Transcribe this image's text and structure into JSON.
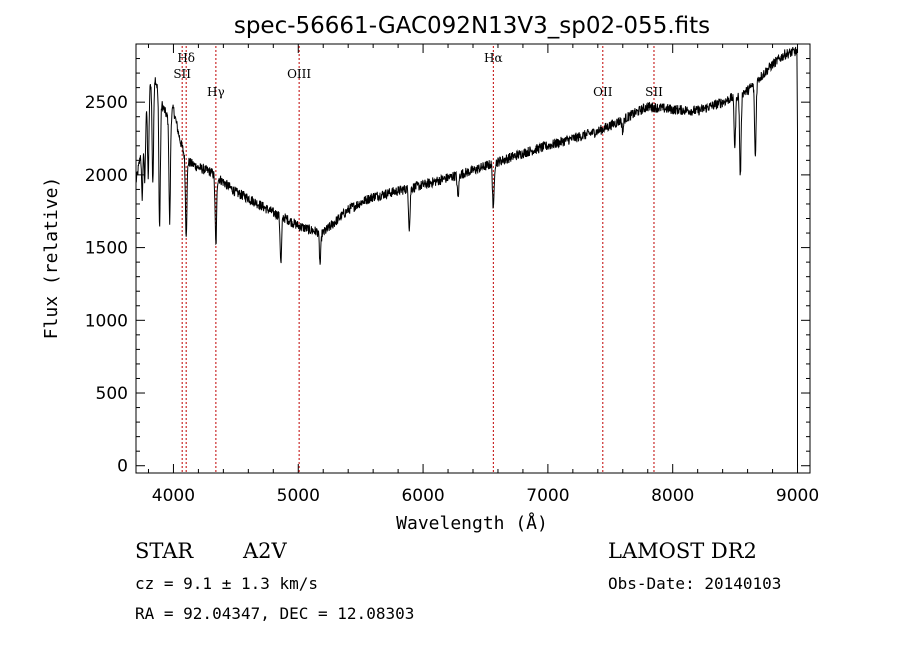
{
  "chart_data": {
    "type": "line",
    "title": "spec-56661-GAC092N13V3_sp02-055.fits",
    "xlabel": "Wavelength (Å)",
    "ylabel": "Flux (relative)",
    "xlim": [
      3700,
      9100
    ],
    "ylim": [
      -50,
      2900
    ],
    "xticks": [
      4000,
      5000,
      6000,
      7000,
      8000,
      9000
    ],
    "yticks": [
      0,
      500,
      1000,
      1500,
      2000,
      2500
    ],
    "continuum": [
      {
        "x": 3700,
        "y": 1950
      },
      {
        "x": 3730,
        "y": 2100
      },
      {
        "x": 3760,
        "y": 2400
      },
      {
        "x": 3800,
        "y": 2600
      },
      {
        "x": 3850,
        "y": 2680
      },
      {
        "x": 3900,
        "y": 2500
      },
      {
        "x": 3950,
        "y": 2400
      },
      {
        "x": 4000,
        "y": 2450
      },
      {
        "x": 4050,
        "y": 2250
      },
      {
        "x": 4100,
        "y": 2100
      },
      {
        "x": 4200,
        "y": 2050
      },
      {
        "x": 4300,
        "y": 2020
      },
      {
        "x": 4400,
        "y": 1950
      },
      {
        "x": 4500,
        "y": 1880
      },
      {
        "x": 4600,
        "y": 1840
      },
      {
        "x": 4700,
        "y": 1790
      },
      {
        "x": 4800,
        "y": 1740
      },
      {
        "x": 4900,
        "y": 1700
      },
      {
        "x": 5000,
        "y": 1650
      },
      {
        "x": 5100,
        "y": 1620
      },
      {
        "x": 5200,
        "y": 1600
      },
      {
        "x": 5300,
        "y": 1680
      },
      {
        "x": 5400,
        "y": 1760
      },
      {
        "x": 5500,
        "y": 1810
      },
      {
        "x": 5600,
        "y": 1850
      },
      {
        "x": 5800,
        "y": 1890
      },
      {
        "x": 6000,
        "y": 1930
      },
      {
        "x": 6200,
        "y": 1980
      },
      {
        "x": 6400,
        "y": 2030
      },
      {
        "x": 6600,
        "y": 2090
      },
      {
        "x": 6800,
        "y": 2150
      },
      {
        "x": 7000,
        "y": 2200
      },
      {
        "x": 7200,
        "y": 2250
      },
      {
        "x": 7400,
        "y": 2300
      },
      {
        "x": 7600,
        "y": 2380
      },
      {
        "x": 7800,
        "y": 2470
      },
      {
        "x": 8000,
        "y": 2450
      },
      {
        "x": 8200,
        "y": 2440
      },
      {
        "x": 8400,
        "y": 2500
      },
      {
        "x": 8600,
        "y": 2580
      },
      {
        "x": 8800,
        "y": 2760
      },
      {
        "x": 8900,
        "y": 2830
      },
      {
        "x": 8990,
        "y": 2850
      }
    ],
    "absorption_features": [
      {
        "x": 3750,
        "depth": 450
      },
      {
        "x": 3770,
        "depth": 500
      },
      {
        "x": 3798,
        "depth": 600
      },
      {
        "x": 3835,
        "depth": 700
      },
      {
        "x": 3889,
        "depth": 900
      },
      {
        "x": 3970,
        "depth": 750
      },
      {
        "x": 4102,
        "depth": 500
      },
      {
        "x": 4340,
        "depth": 480
      },
      {
        "x": 4861,
        "depth": 330
      },
      {
        "x": 5175,
        "depth": 220
      },
      {
        "x": 5890,
        "depth": 270
      },
      {
        "x": 6280,
        "depth": 160
      },
      {
        "x": 6563,
        "depth": 330
      },
      {
        "x": 7600,
        "depth": 80
      },
      {
        "x": 8498,
        "depth": 350
      },
      {
        "x": 8542,
        "depth": 570
      },
      {
        "x": 8662,
        "depth": 520
      }
    ],
    "reference_lines": [
      {
        "label": "Hδ",
        "x": 4102,
        "row": 0
      },
      {
        "label": "SII",
        "x": 4070,
        "row": 1
      },
      {
        "label": "Hγ",
        "x": 4340,
        "row": 2
      },
      {
        "label": "OIII",
        "x": 5007,
        "row": 1
      },
      {
        "label": "Hα",
        "x": 6563,
        "row": 0
      },
      {
        "label": "OII",
        "x": 7440,
        "row": 2
      },
      {
        "label": "SII",
        "x": 7850,
        "row": 2
      }
    ],
    "colors": {
      "spectrum": "#000000",
      "reference_lines": "#c00000"
    }
  },
  "info": {
    "object_class": "STAR",
    "subclass": "A2V",
    "survey": "LAMOST DR2",
    "redshift": "cz = 9.1 ± 1.3 km/s",
    "obs_date": "Obs-Date: 20140103",
    "coords": "RA =  92.04347, DEC =  12.08303"
  }
}
